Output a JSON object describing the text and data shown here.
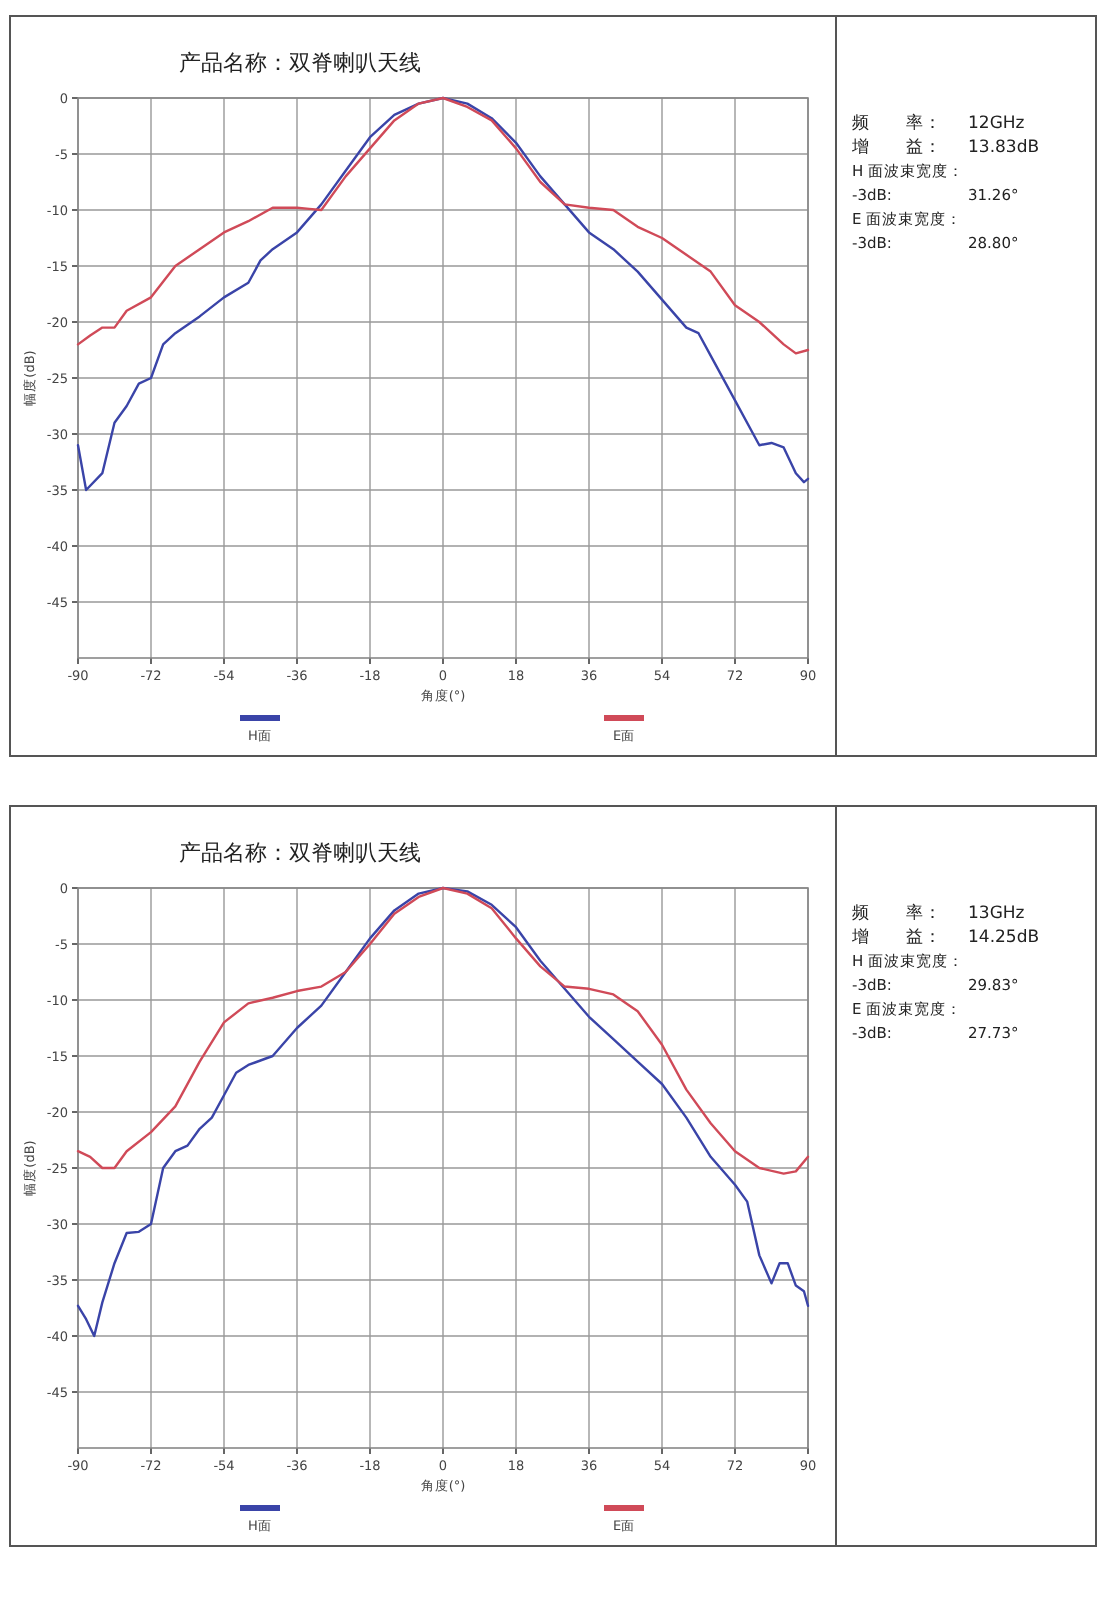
{
  "chart_data": [
    {
      "type": "line",
      "title": "产品名称：双脊喇叭天线",
      "xlabel": "角度(°)",
      "ylabel": "幅度(dB)",
      "xlim": [
        -90,
        90
      ],
      "xticks": [
        -90,
        -72,
        -54,
        -36,
        -18,
        0,
        18,
        36,
        54,
        72,
        90
      ],
      "ylim": [
        -50,
        0
      ],
      "yticks": [
        0,
        -5,
        -10,
        -15,
        -20,
        -25,
        -30,
        -35,
        -40,
        -45
      ],
      "grid": true,
      "legend": "bottom",
      "marker": "none",
      "line_style": "solid",
      "series": [
        {
          "name": "H面",
          "color": "#3a44a8",
          "x": [
            -90,
            -88,
            -84,
            -81,
            -78,
            -75,
            -72,
            -69,
            -66,
            -60,
            -54,
            -48,
            -45,
            -42,
            -36,
            -30,
            -24,
            -18,
            -12,
            -6,
            0,
            6,
            12,
            18,
            24,
            30,
            36,
            42,
            48,
            54,
            60,
            63,
            66,
            72,
            78,
            81,
            84,
            87,
            89,
            90
          ],
          "values": [
            -31,
            -35,
            -33.5,
            -29,
            -27.5,
            -25.5,
            -25,
            -22,
            -21,
            -19.5,
            -17.8,
            -16.5,
            -14.5,
            -13.5,
            -12,
            -9.5,
            -6.5,
            -3.5,
            -1.5,
            -0.5,
            0,
            -0.5,
            -1.8,
            -4,
            -7,
            -9.5,
            -12,
            -13.5,
            -15.5,
            -18,
            -20.5,
            -21,
            -23,
            -27,
            -31,
            -30.8,
            -31.2,
            -33.5,
            -34.3,
            -34
          ]
        },
        {
          "name": "E面",
          "color": "#d04a58",
          "x": [
            -90,
            -87,
            -84,
            -81,
            -78,
            -72,
            -66,
            -60,
            -54,
            -48,
            -42,
            -36,
            -33,
            -30,
            -24,
            -18,
            -12,
            -6,
            0,
            6,
            12,
            18,
            24,
            30,
            36,
            42,
            48,
            54,
            60,
            66,
            72,
            78,
            84,
            87,
            90
          ],
          "values": [
            -22,
            -21.2,
            -20.5,
            -20.5,
            -19,
            -17.8,
            -15,
            -13.5,
            -12,
            -11,
            -9.8,
            -9.8,
            -9.9,
            -10,
            -7,
            -4.5,
            -2,
            -0.5,
            0,
            -0.8,
            -2,
            -4.5,
            -7.5,
            -9.5,
            -9.8,
            -10,
            -11.5,
            -12.5,
            -14,
            -15.5,
            -18.5,
            -20,
            -22,
            -22.8,
            -22.5
          ]
        }
      ]
    },
    {
      "type": "other",
      "annotations": [
        "频　　率：",
        "12GHz",
        "增　　益：",
        "13.83dB",
        "H 面波束宽度：",
        "-3dB:",
        "31.26°",
        "E 面波束宽度：",
        "-3dB:",
        "28.80°"
      ]
    },
    {
      "type": "line",
      "title": "产品名称：双脊喇叭天线",
      "xlabel": "角度(°)",
      "ylabel": "幅度(dB)",
      "xlim": [
        -90,
        90
      ],
      "xticks": [
        -90,
        -72,
        -54,
        -36,
        -18,
        0,
        18,
        36,
        54,
        72,
        90
      ],
      "ylim": [
        -50,
        0
      ],
      "yticks": [
        0,
        -5,
        -10,
        -15,
        -20,
        -25,
        -30,
        -35,
        -40,
        -45
      ],
      "grid": true,
      "legend": "bottom",
      "marker": "none",
      "line_style": "solid",
      "series": [
        {
          "name": "H面",
          "color": "#3a44a8",
          "x": [
            -90,
            -88,
            -86,
            -84,
            -81,
            -78,
            -75,
            -72,
            -69,
            -66,
            -63,
            -60,
            -57,
            -54,
            -51,
            -48,
            -42,
            -36,
            -30,
            -24,
            -18,
            -12,
            -6,
            0,
            6,
            12,
            18,
            24,
            30,
            36,
            42,
            48,
            54,
            60,
            66,
            72,
            75,
            78,
            81,
            83,
            85,
            87,
            89,
            90
          ],
          "values": [
            -37.3,
            -38.5,
            -40,
            -37,
            -33.5,
            -30.8,
            -30.7,
            -30,
            -25,
            -23.5,
            -23,
            -21.5,
            -20.5,
            -18.5,
            -16.5,
            -15.8,
            -15,
            -12.5,
            -10.5,
            -7.5,
            -4.5,
            -2,
            -0.5,
            0,
            -0.3,
            -1.5,
            -3.5,
            -6.5,
            -9,
            -11.5,
            -13.5,
            -15.5,
            -17.5,
            -20.5,
            -24,
            -26.5,
            -28,
            -32.8,
            -35.3,
            -33.5,
            -33.5,
            -35.5,
            -36,
            -37.3
          ]
        },
        {
          "name": "E面",
          "color": "#d04a58",
          "x": [
            -90,
            -87,
            -84,
            -81,
            -78,
            -72,
            -66,
            -60,
            -54,
            -48,
            -42,
            -36,
            -30,
            -24,
            -18,
            -12,
            -6,
            0,
            6,
            12,
            18,
            24,
            30,
            36,
            42,
            48,
            54,
            60,
            66,
            72,
            78,
            84,
            87,
            90
          ],
          "values": [
            -23.5,
            -24,
            -25,
            -25,
            -23.5,
            -21.8,
            -19.5,
            -15.5,
            -12,
            -10.3,
            -9.8,
            -9.2,
            -8.8,
            -7.5,
            -5,
            -2.3,
            -0.8,
            0,
            -0.5,
            -1.8,
            -4.5,
            -7,
            -8.8,
            -9,
            -9.5,
            -11,
            -14,
            -18,
            -21,
            -23.5,
            -25,
            -25.5,
            -25.3,
            -24
          ]
        }
      ]
    },
    {
      "type": "other",
      "annotations": [
        "频　　率：",
        "13GHz",
        "增　　益：",
        "14.25dB",
        "H 面波束宽度：",
        "-3dB:",
        "29.83°",
        "E 面波束宽度：",
        "-3dB:",
        "27.73°"
      ]
    }
  ]
}
